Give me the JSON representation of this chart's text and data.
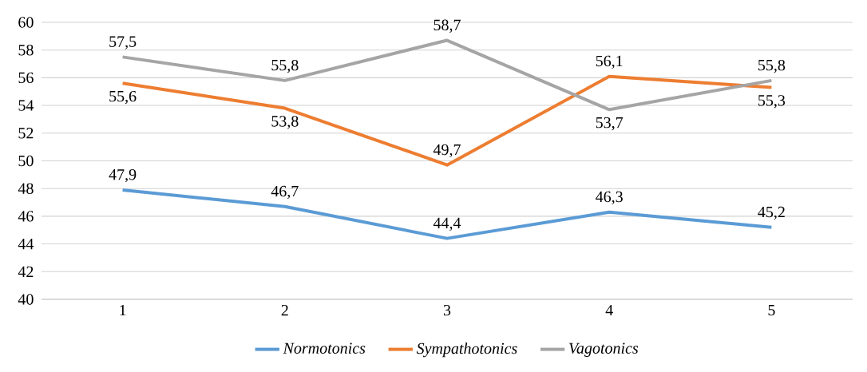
{
  "chart_data": {
    "type": "line",
    "categories": [
      "1",
      "2",
      "3",
      "4",
      "5"
    ],
    "series": [
      {
        "name": "Normotonics",
        "color": "#5b9bd5",
        "values": [
          47.9,
          46.7,
          44.4,
          46.3,
          45.2
        ],
        "value_labels": [
          "47,9",
          "46,7",
          "44,4",
          "46,3",
          "45,2"
        ]
      },
      {
        "name": "Sympathotonics",
        "color": "#ed7d31",
        "values": [
          55.6,
          53.8,
          49.7,
          56.1,
          55.3
        ],
        "value_labels": [
          "55,6",
          "53,8",
          "49,7",
          "56,1",
          "55,3"
        ]
      },
      {
        "name": "Vagotonics",
        "color": "#a5a5a5",
        "values": [
          57.5,
          55.8,
          58.7,
          53.7,
          55.8
        ],
        "value_labels": [
          "57,5",
          "55,8",
          "58,7",
          "53,7",
          "55,8"
        ]
      }
    ],
    "ylim": [
      40,
      60
    ],
    "yticks": [
      40,
      42,
      44,
      46,
      48,
      50,
      52,
      54,
      56,
      58,
      60
    ],
    "grid": "y",
    "legend": "bottom",
    "marker": "none",
    "line_style": "solid"
  }
}
